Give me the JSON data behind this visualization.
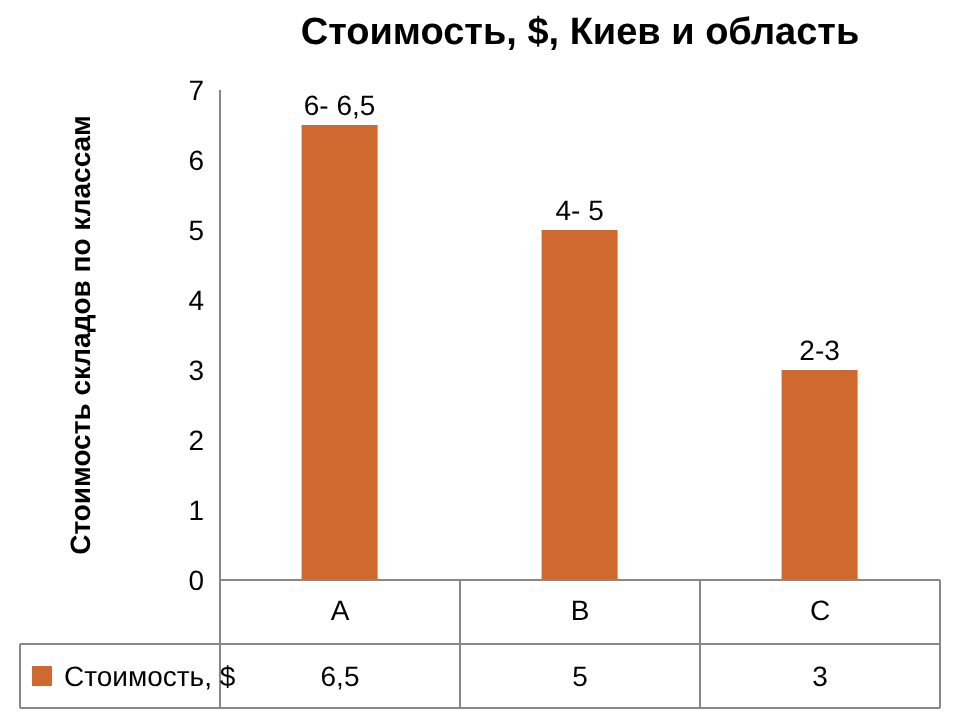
{
  "chart_data": {
    "type": "bar",
    "title": "Стоимость, $, Киев и область",
    "ylabel": "Стоимость складов по классам",
    "categories": [
      "A",
      "B",
      "C"
    ],
    "series": [
      {
        "name": "Стоимость, $",
        "color": "#d0692f",
        "values": [
          6.5,
          5,
          3
        ],
        "value_labels": [
          "6- 6,5",
          "4- 5",
          "2-3"
        ]
      }
    ],
    "ylim": [
      0,
      7
    ],
    "yticks": [
      0,
      1,
      2,
      3,
      4,
      5,
      6,
      7
    ],
    "legend": "bottom",
    "annotations": [
      "6,5",
      "5",
      "3"
    ]
  }
}
